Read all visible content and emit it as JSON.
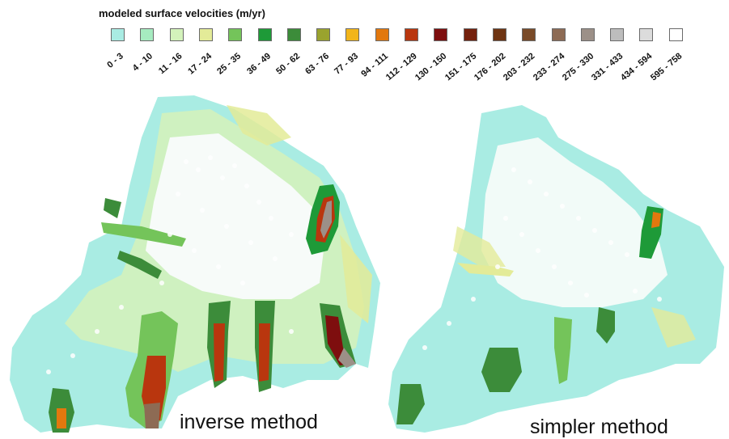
{
  "legend": {
    "title": "modeled surface velocities (m/yr)",
    "classes": [
      {
        "range": "0 - 3",
        "color": "#a9ece3"
      },
      {
        "range": "4 - 10",
        "color": "#a6ebc0"
      },
      {
        "range": "11 - 16",
        "color": "#d3f2bb"
      },
      {
        "range": "17 - 24",
        "color": "#e3eb98"
      },
      {
        "range": "25 - 35",
        "color": "#74c45a"
      },
      {
        "range": "36 - 49",
        "color": "#1e9a38"
      },
      {
        "range": "50 - 62",
        "color": "#3c8c3a"
      },
      {
        "range": "63 - 76",
        "color": "#9aa32e"
      },
      {
        "range": "77 - 93",
        "color": "#f2b51a"
      },
      {
        "range": "94 - 111",
        "color": "#e2780e"
      },
      {
        "range": "112 - 129",
        "color": "#b9360e"
      },
      {
        "range": "130 - 150",
        "color": "#7e0e0e"
      },
      {
        "range": "151 - 175",
        "color": "#74200c"
      },
      {
        "range": "176 - 202",
        "color": "#6e3412"
      },
      {
        "range": "203 - 232",
        "color": "#794a28"
      },
      {
        "range": "233 - 274",
        "color": "#8d6b54"
      },
      {
        "range": "275 - 330",
        "color": "#9c9088"
      },
      {
        "range": "331 - 433",
        "color": "#bdbdbd"
      },
      {
        "range": "434 - 594",
        "color": "#dcdcdc"
      },
      {
        "range": "595 - 758",
        "color": "#ffffff"
      }
    ]
  },
  "panels": {
    "left": {
      "caption": "inverse method"
    },
    "right": {
      "caption": "simpler method"
    }
  }
}
